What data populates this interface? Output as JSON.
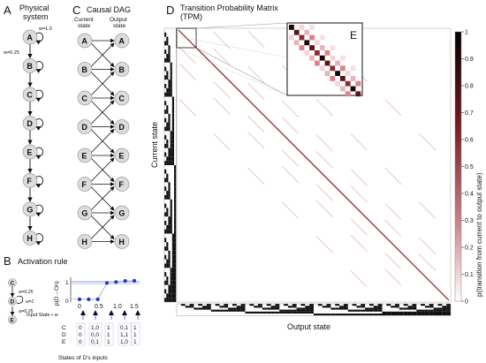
{
  "panels": {
    "a": {
      "letter": "A",
      "title_line1": "Physical",
      "title_line2": "system",
      "nodes": [
        "A",
        "B",
        "C",
        "D",
        "E",
        "F",
        "G",
        "H"
      ],
      "weight_self": "w=1.0",
      "weight_chain": "w=0.25"
    },
    "b": {
      "letter": "B",
      "title": "Activation rule",
      "nodes": [
        "C",
        "D",
        "E"
      ],
      "weight_in": "w=0.25",
      "weight_self": "w=1",
      "weight_in2": "w=0.25",
      "ylabel": "p(D→On)",
      "ytick_top": "1",
      "ytick_bottom": "0",
      "xticks": [
        "0",
        "0.5",
        "1.0",
        "1.5"
      ],
      "input_state_label": "Input State • w",
      "row_labels": [
        "C",
        "D",
        "E"
      ],
      "columns": [
        [
          "0",
          "0",
          "0"
        ],
        [
          "1,0",
          "0,0",
          "0,1"
        ],
        [
          "1",
          "1",
          "1"
        ],
        [
          "0,1",
          "1,1",
          "1,0"
        ],
        [
          "1",
          "1",
          "1"
        ]
      ],
      "footer": "States of D's inputs"
    },
    "c": {
      "letter": "C",
      "title": "Causal DAG",
      "col_left_line1": "Current",
      "col_left_line2": "state",
      "col_right_line1": "Output",
      "col_right_line2": "state",
      "nodes": [
        "A",
        "B",
        "C",
        "D",
        "E",
        "F",
        "G",
        "H"
      ]
    },
    "d": {
      "letter": "D",
      "title_line1": "Transition Probability Matrix",
      "title_line2": "(TPM)",
      "ylabel": "Current state",
      "xlabel": "Output state"
    },
    "e": {
      "letter": "E"
    },
    "colorbar": {
      "ticks": [
        "1",
        "0.9",
        "0.8",
        "0.7",
        "0.6",
        "0.5",
        "0.4",
        "0.3",
        "0.2",
        "0.1",
        "0"
      ],
      "label": "p(transition from current to output state)",
      "color_high": "#000000",
      "color_mid": "#a0262c",
      "color_low": "#ffffff"
    }
  },
  "chart_data": {
    "type": "line",
    "x": [
      0,
      0.25,
      0.5,
      0.75,
      1.0,
      1.25,
      1.5
    ],
    "y": [
      0.05,
      0.05,
      0.05,
      0.85,
      0.9,
      0.95,
      0.96
    ],
    "ylim": [
      0,
      1
    ],
    "xticks": [
      "0",
      "0.5",
      "1.0",
      "1.5"
    ]
  }
}
